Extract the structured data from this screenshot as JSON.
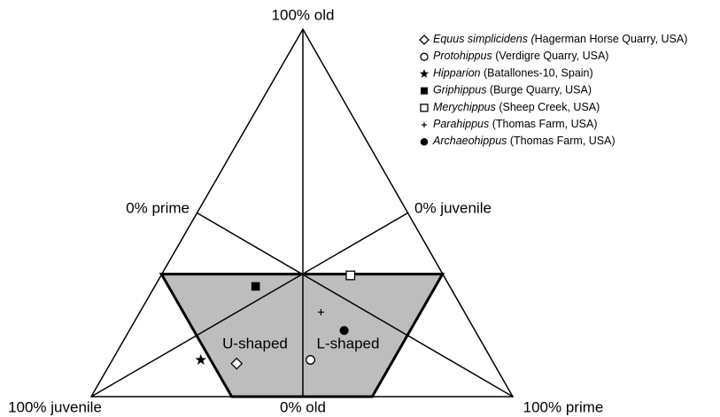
{
  "chart_data": {
    "type": "ternary",
    "axis_labels": [
      "100% old",
      "0% prime",
      "0% juvenile",
      "100% juvenile",
      "0% old",
      "100% prime"
    ],
    "regions": [
      "U-shaped",
      "L-shaped"
    ],
    "color": "#000000",
    "region_color": "#bdbdbd",
    "series": [
      {
        "name": "Equus simplicidens (",
        "locality": "Hagerman Horse Quarry, USA)",
        "marker": "diamond-open",
        "juvenile": 61,
        "prime": 30,
        "old": 9
      },
      {
        "name": "Protohippus",
        "locality": " (Verdigre Quarry, USA)",
        "marker": "circle-open",
        "juvenile": 43,
        "prime": 47,
        "old": 10
      },
      {
        "name": "Hipparion",
        "locality": " (Batallones-10, Spain)",
        "marker": "star",
        "juvenile": 69,
        "prime": 21,
        "old": 10
      },
      {
        "name": "Griphippus",
        "locality": " (Burge Quarry, USA)",
        "marker": "square",
        "juvenile": 46,
        "prime": 24,
        "old": 30
      },
      {
        "name": "Merychippus",
        "locality": " (Sheep Creek, USA)",
        "marker": "square-open",
        "juvenile": 22,
        "prime": 45,
        "old": 33
      },
      {
        "name": "Parahippus",
        "locality": " (Thomas Farm, USA)",
        "marker": "plus",
        "juvenile": 34,
        "prime": 43,
        "old": 23
      },
      {
        "name": "Archaeohippus",
        "locality": " (Thomas Farm, USA)",
        "marker": "circle",
        "juvenile": 31,
        "prime": 51,
        "old": 18
      }
    ]
  }
}
